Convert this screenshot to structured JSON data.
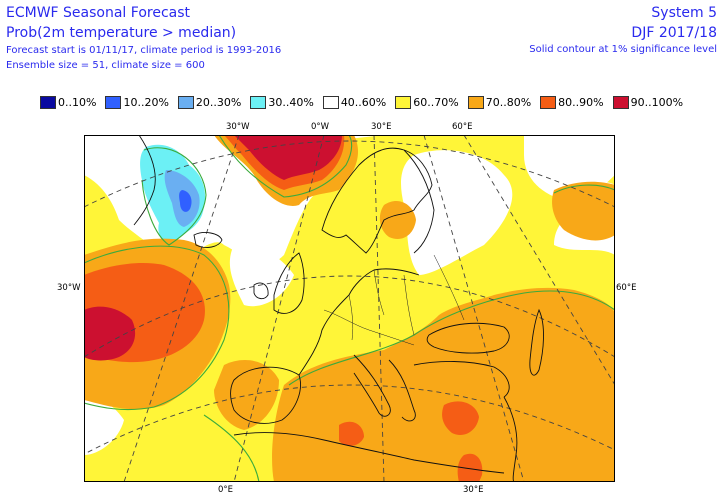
{
  "header": {
    "title": "ECMWF Seasonal Forecast",
    "subtitle": "Prob(2m temperature > median)",
    "line3": "Forecast start is 01/11/17, climate period is 1993-2016",
    "line4": "Ensemble size = 51, climate size = 600",
    "system": "System 5",
    "period": "DJF 2017/18",
    "contour_note": "Solid contour at 1% significance level"
  },
  "legend": [
    {
      "label": "0..10%",
      "color": "#0a0aa0"
    },
    {
      "label": "10..20%",
      "color": "#3060ff"
    },
    {
      "label": "20..30%",
      "color": "#6aaff2"
    },
    {
      "label": "30..40%",
      "color": "#6cf0f5"
    },
    {
      "label": "40..60%",
      "color": "#ffffff"
    },
    {
      "label": "60..70%",
      "color": "#fff538"
    },
    {
      "label": "70..80%",
      "color": "#f8a818"
    },
    {
      "label": "80..90%",
      "color": "#f55d15"
    },
    {
      "label": "90..100%",
      "color": "#cc1030"
    }
  ],
  "grid_labels": {
    "top_30w": "30°W",
    "top_0": "0°W",
    "top_30e": "30°E",
    "top_60e": "60°E",
    "left_30w": "30°W",
    "right_60e": "60°E",
    "bottom_0": "0°E",
    "bottom_30e": "30°E"
  }
}
